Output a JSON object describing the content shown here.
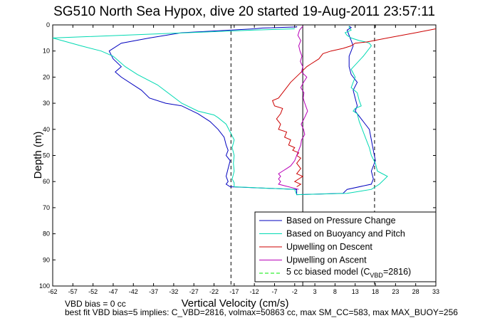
{
  "chart_data": {
    "type": "line",
    "title": "SG510 North Sea Hypox, dive 20 started 19-Aug-2011 23:57:11",
    "xlabel": "Vertical Velocity (cm/s)",
    "ylabel": "Depth (m)",
    "xlim": [
      -62,
      33
    ],
    "ylim": [
      0,
      100
    ],
    "y_reversed": true,
    "xticks": [
      -62,
      -57,
      -52,
      -47,
      -42,
      -37,
      -32,
      -27,
      -22,
      -17,
      -12,
      -7,
      -2,
      3,
      8,
      13,
      18,
      23,
      28,
      33
    ],
    "yticks": [
      0,
      10,
      20,
      30,
      40,
      50,
      60,
      70,
      80,
      90,
      100
    ],
    "reference_lines": [
      {
        "axis": "x",
        "value": -17.8,
        "style": "dashed"
      },
      {
        "axis": "x",
        "value": 17.8,
        "style": "dashed"
      },
      {
        "axis": "x",
        "value": 0,
        "style": "solid"
      }
    ],
    "legend": {
      "placement": "lower-right",
      "entries": [
        {
          "label": "Based on Pressure Change",
          "color": "#0000bf",
          "style": "solid"
        },
        {
          "label": "Based on Buoyancy and Pitch",
          "color": "#00d9b2",
          "style": "solid"
        },
        {
          "label": "Upwelling on Descent",
          "color": "#cc0000",
          "style": "solid"
        },
        {
          "label": "Upwelling on Ascent",
          "color": "#b800b8",
          "style": "solid"
        },
        {
          "label": "5 cc biased model (C",
          "label_sub": "VBD",
          "label_tail": "=2816)",
          "color": "#00ee00",
          "style": "dashed"
        }
      ]
    },
    "series": [
      {
        "name": "Based on Pressure Change",
        "color": "#0000bf",
        "x": [
          -1.5,
          -1.5,
          -10,
          -12,
          -30,
          -38,
          -45,
          -48,
          -47,
          -45,
          -46.5,
          -45,
          -40,
          -38,
          -34,
          -30,
          -26,
          -23,
          -21,
          -19.5,
          -19,
          -18.5,
          -19,
          -18,
          -18.5,
          -19,
          -18.5,
          -19,
          -18,
          -1.5,
          -1.5,
          10,
          11,
          17,
          17.5,
          17,
          18,
          17.5,
          17,
          16.5,
          15.5,
          14,
          13,
          13.5,
          13,
          12.5,
          13.5,
          12,
          11.5,
          11.5,
          12,
          12.5,
          12,
          11.5,
          11,
          12,
          11.5
        ],
        "y": [
          0.5,
          0.8,
          1.2,
          1.5,
          3,
          5,
          7,
          10,
          13,
          16,
          18,
          20,
          25,
          28,
          30,
          31,
          34,
          37,
          40,
          43,
          46,
          48,
          50,
          52,
          55,
          58,
          60,
          61,
          62,
          63,
          65,
          64.5,
          63,
          61,
          59,
          56,
          52,
          48,
          44,
          40,
          38,
          35,
          33,
          31,
          28,
          25,
          22,
          19,
          16,
          12,
          10,
          8,
          6,
          4,
          2,
          1,
          0.5
        ]
      },
      {
        "name": "Based on Buoyancy and Pitch",
        "color": "#00d9b2",
        "x": [
          -2,
          -12,
          -62,
          -55,
          -50,
          -47,
          -44,
          -41,
          -36,
          -30,
          -26,
          -22,
          -21,
          -19,
          -18,
          -17,
          -17.5,
          -17,
          -17.2,
          -17,
          -17.5,
          -17,
          -17,
          -2,
          -1.5,
          11,
          17,
          19,
          21,
          18.5,
          18,
          17,
          16.5,
          16,
          15,
          14,
          13.5,
          12.5,
          13,
          14.5,
          14,
          13.5,
          12,
          13,
          12,
          15,
          17,
          16.5,
          15.5,
          14,
          12,
          11,
          10.5,
          12,
          11.5,
          11.5
        ],
        "y": [
          1.5,
          2,
          5,
          8,
          10,
          12,
          16,
          19,
          23,
          30,
          33,
          34.5,
          35.5,
          38,
          41,
          44,
          47,
          50,
          53,
          56,
          59,
          60.5,
          62,
          63,
          65,
          64.5,
          63,
          61,
          58,
          56,
          53,
          50,
          47,
          45,
          41,
          37,
          34,
          33,
          32,
          31,
          29,
          26,
          24,
          20,
          17,
          12,
          8,
          7,
          6.5,
          6,
          5,
          4,
          3,
          2,
          1,
          0.5
        ]
      },
      {
        "name": "Upwelling on Descent",
        "color": "#cc0000",
        "x": [
          33,
          28,
          21,
          16,
          13,
          12,
          10,
          7,
          5,
          4,
          2,
          1,
          -1,
          -3,
          -4.5,
          -6,
          -7.5,
          -7,
          -5,
          -5.5,
          -6.5,
          -5.5,
          -6,
          -4,
          -4.5,
          -3,
          -3.5,
          -2,
          -2.5,
          -1,
          -1.5,
          -0.5,
          -1.5,
          -0.5,
          -1.5,
          0,
          -1,
          -2,
          -0.5,
          -1.5
        ],
        "y": [
          1.5,
          3,
          5,
          6.5,
          7,
          8,
          9,
          10,
          11,
          13,
          15,
          16,
          19,
          22,
          25,
          28,
          29,
          31,
          32,
          34,
          36,
          38,
          40,
          41,
          43,
          44,
          46,
          47,
          48,
          49,
          50,
          51,
          53,
          55,
          57,
          58,
          59,
          60,
          61,
          62
        ]
      },
      {
        "name": "Upwelling on Ascent",
        "color": "#b800b8",
        "x": [
          0,
          -0.8,
          -1.2,
          -0.5,
          -1,
          -0.7,
          -0.2,
          -0.6,
          0,
          -0.3,
          1,
          0.2,
          -0.5,
          0.3,
          0.1,
          0.5,
          1.2,
          0.3,
          -0.4,
          0.2,
          0.5,
          -0.3,
          -0.5,
          -1,
          -1.5,
          -2,
          -3,
          -4,
          -5,
          -6,
          -5.5,
          -6,
          -5.5,
          -6,
          -1
        ],
        "y": [
          0.5,
          2,
          4,
          6,
          8,
          10,
          12,
          14,
          16,
          18,
          20,
          22,
          24,
          26,
          28,
          30,
          33,
          36,
          38,
          40,
          42,
          44,
          46,
          48,
          50,
          52,
          54,
          55,
          56,
          57,
          58,
          59,
          60,
          61,
          63
        ]
      }
    ]
  },
  "notes": {
    "vbd_bias": "VBD bias = 0 cc",
    "best_fit": "best fit VBD bias=5 implies: C_VBD=2816, volmax=50863 cc, max SM_CC=583, max MAX_BUOY=256"
  }
}
